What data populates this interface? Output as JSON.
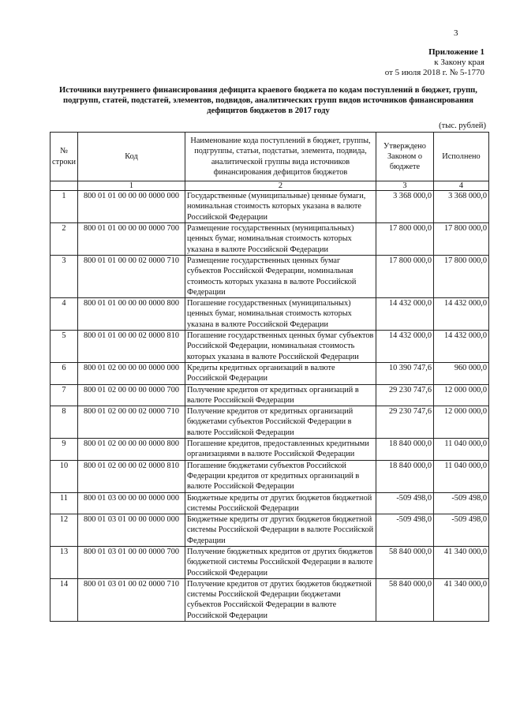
{
  "page_number": "3",
  "appendix": {
    "title": "Приложение 1",
    "line2": "к Закону края",
    "line3": "от 5 июля 2018 г. № 5-1770"
  },
  "doc_title": "Источники внутреннего финансирования дефицита краевого бюджета по кодам поступлений в бюджет, групп, подгрупп, статей, подстатей, элементов, подвидов, аналитических групп видов источников финансирования дефицитов бюджетов в 2017 году",
  "units": "(тыс. рублей)",
  "table": {
    "headers": [
      "№ строки",
      "Код",
      "Наименование кода поступлений в бюджет, группы, подгруппы, статьи, подстатьи, элемента, подвида, аналитической группы вида источников финансирования дефицитов бюджетов",
      "Утверждено Законом о бюджете",
      "Исполнено"
    ],
    "column_numbers": [
      "",
      "1",
      "2",
      "3",
      "4"
    ],
    "rows": [
      [
        "1",
        "800 01 01 00 00 00 0000 000",
        "Государственные (муниципальные) ценные бумаги, номинальная стоимость которых указана в валюте Российской Федерации",
        "3 368 000,0",
        "3 368 000,0"
      ],
      [
        "2",
        "800 01 01 00 00 00 0000 700",
        "Размещение государственных (муниципальных) ценных бумаг, номинальная стоимость которых указана в валюте Российской Федерации",
        "17 800 000,0",
        "17 800 000,0"
      ],
      [
        "3",
        "800 01 01 00 00 02 0000 710",
        "Размещение государственных ценных бумаг субъектов Российской Федерации, номинальная стоимость которых указана в валюте Российской Федерации",
        "17 800 000,0",
        "17 800 000,0"
      ],
      [
        "4",
        "800 01 01 00 00 00 0000 800",
        "Погашение государственных (муниципальных) ценных бумаг, номинальная стоимость которых указана в валюте Российской Федерации",
        "14 432 000,0",
        "14 432 000,0"
      ],
      [
        "5",
        "800 01 01 00 00 02 0000 810",
        "Погашение государственных ценных бумаг субъектов Российской Федерации, номинальная стоимость которых указана в валюте Российской Федерации",
        "14 432 000,0",
        "14 432 000,0"
      ],
      [
        "6",
        "800 01 02 00 00 00 0000 000",
        "Кредиты кредитных организаций в валюте Российской Федерации",
        "10 390 747,6",
        "960 000,0"
      ],
      [
        "7",
        "800 01 02 00 00 00 0000 700",
        "Получение кредитов от кредитных организаций в валюте Российской Федерации",
        "29 230 747,6",
        "12 000 000,0"
      ],
      [
        "8",
        "800 01 02 00 00 02 0000 710",
        "Получение кредитов от кредитных организаций бюджетами субъектов Российской Федерации в валюте Российской Федерации",
        "29 230 747,6",
        "12 000 000,0"
      ],
      [
        "9",
        "800 01 02 00 00 00 0000 800",
        "Погашение кредитов, предоставленных кредитными организациями в валюте Российской Федерации",
        "18 840 000,0",
        "11 040 000,0"
      ],
      [
        "10",
        "800 01 02 00 00 02 0000 810",
        "Погашение бюджетами субъектов Российской Федерации кредитов от кредитных организаций в валюте Российской Федерации",
        "18 840 000,0",
        "11 040 000,0"
      ],
      [
        "11",
        "800 01 03 00 00 00 0000 000",
        "Бюджетные кредиты от других бюджетов бюджетной системы Российской Федерации",
        "-509 498,0",
        "-509 498,0"
      ],
      [
        "12",
        "800 01 03 01 00 00 0000 000",
        "Бюджетные кредиты от других бюджетов бюджетной системы Российской Федерации в валюте Российской Федерации",
        "-509 498,0",
        "-509 498,0"
      ],
      [
        "13",
        "800 01 03 01 00 00 0000 700",
        "Получение бюджетных кредитов от других бюджетов бюджетной системы Российской Федерации в валюте Российской Федерации",
        "58 840 000,0",
        "41 340 000,0"
      ],
      [
        "14",
        "800 01 03 01 00 02 0000 710",
        "Получение кредитов от других бюджетов бюджетной системы Российской Федерации бюджетами субъектов Российской Федерации в валюте Российской Федерации",
        "58 840 000,0",
        "41 340 000,0"
      ]
    ]
  }
}
